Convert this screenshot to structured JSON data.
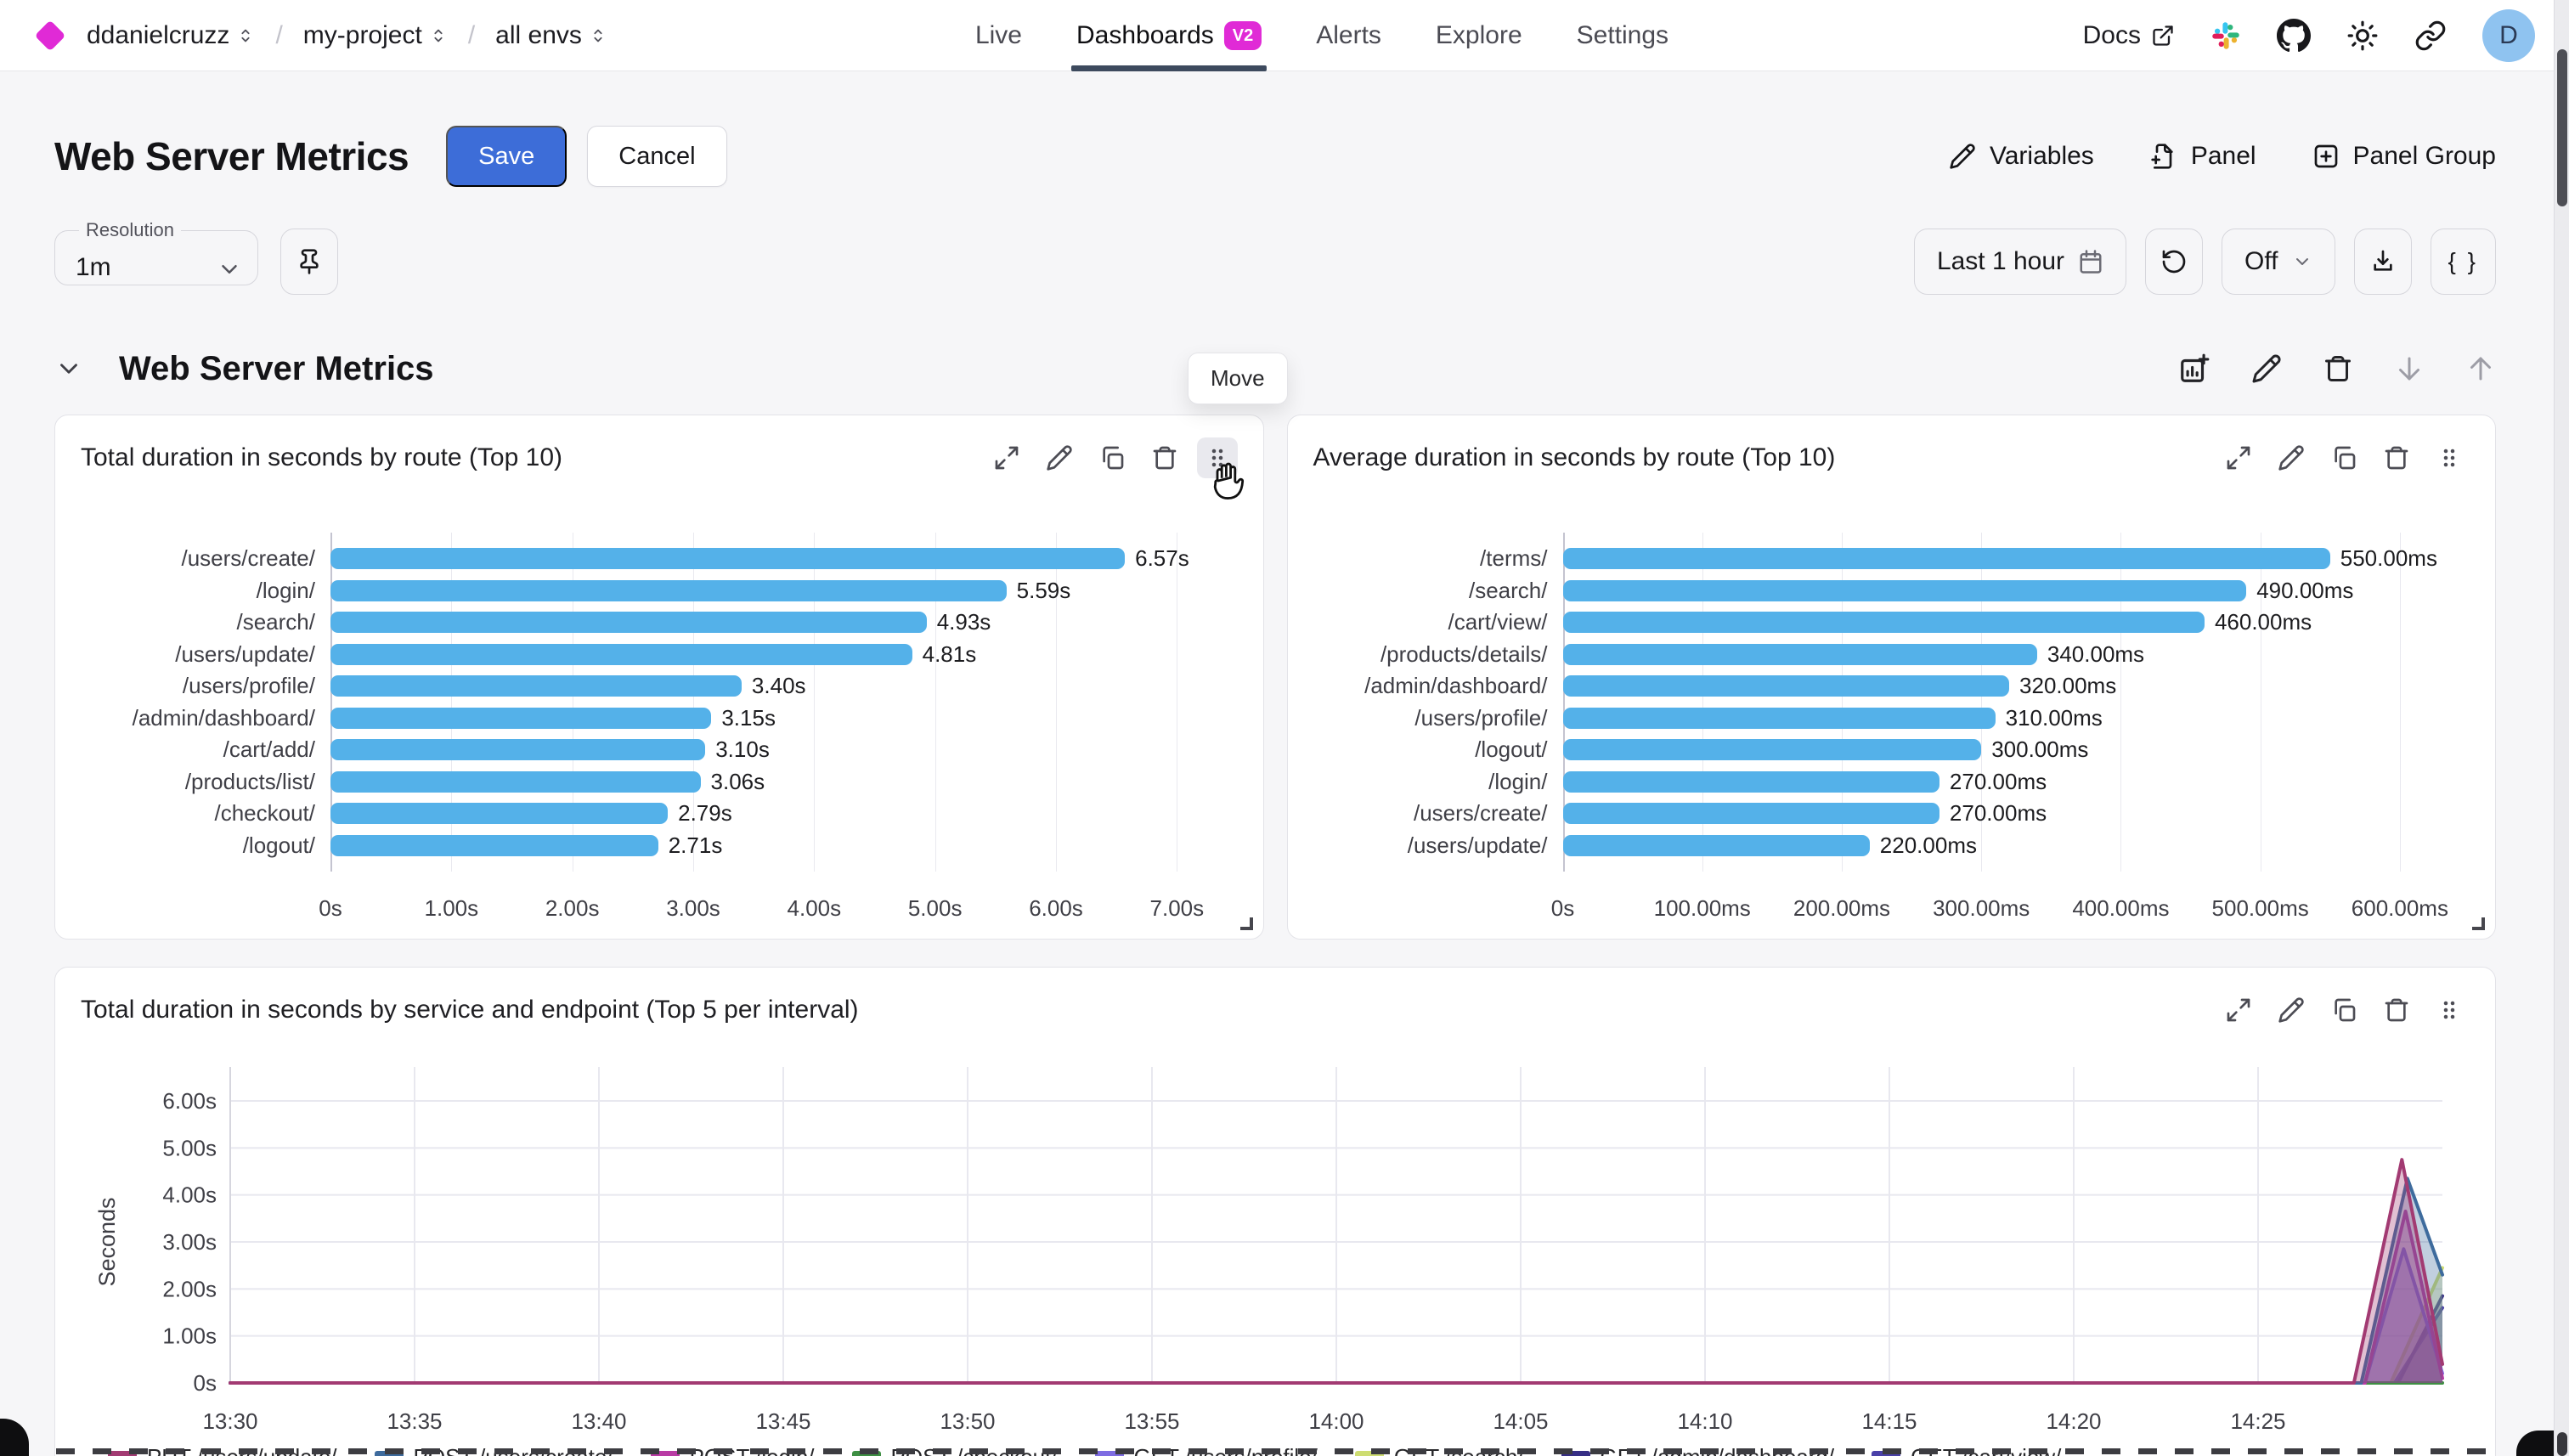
{
  "nav": {
    "org": "ddanielcruzz",
    "project": "my-project",
    "env": "all envs",
    "tabs": [
      {
        "label": "Live",
        "active": false
      },
      {
        "label": "Dashboards",
        "active": true,
        "badge": "V2"
      },
      {
        "label": "Alerts",
        "active": false
      },
      {
        "label": "Explore",
        "active": false
      },
      {
        "label": "Settings",
        "active": false
      }
    ],
    "docs": "Docs",
    "avatar_initial": "D"
  },
  "header": {
    "title": "Web Server Metrics",
    "save": "Save",
    "cancel": "Cancel",
    "variables": "Variables",
    "panel": "Panel",
    "panel_group": "Panel Group"
  },
  "toolbar": {
    "resolution_label": "Resolution",
    "resolution_value": "1m",
    "time_range": "Last 1 hour",
    "auto_refresh": "Off",
    "braces": "{ }"
  },
  "section": {
    "title": "Web Server Metrics",
    "tooltip": "Move"
  },
  "colors": {
    "accent_blue": "#3d6dd8",
    "brand_magenta": "#e02ad6",
    "bar_blue": "#54b1e9"
  },
  "chart_data": [
    {
      "type": "bar",
      "title": "Total duration in seconds by route (Top 10)",
      "orientation": "horizontal",
      "categories": [
        "/users/create/",
        "/login/",
        "/search/",
        "/users/update/",
        "/users/profile/",
        "/admin/dashboard/",
        "/cart/add/",
        "/products/list/",
        "/checkout/",
        "/logout/"
      ],
      "values": [
        6.57,
        5.59,
        4.93,
        4.81,
        3.4,
        3.15,
        3.1,
        3.06,
        2.79,
        2.71
      ],
      "value_labels": [
        "6.57s",
        "5.59s",
        "4.93s",
        "4.81s",
        "3.40s",
        "3.15s",
        "3.10s",
        "3.06s",
        "2.79s",
        "2.71s"
      ],
      "xticks": [
        {
          "v": 0,
          "label": "0s"
        },
        {
          "v": 1,
          "label": "1.00s"
        },
        {
          "v": 2,
          "label": "2.00s"
        },
        {
          "v": 3,
          "label": "3.00s"
        },
        {
          "v": 4,
          "label": "4.00s"
        },
        {
          "v": 5,
          "label": "5.00s"
        },
        {
          "v": 6,
          "label": "6.00s"
        },
        {
          "v": 7,
          "label": "7.00s"
        }
      ],
      "xmax": 7.5,
      "bar_color": "#54b1e9",
      "grid": true
    },
    {
      "type": "bar",
      "title": "Average duration in seconds by route (Top 10)",
      "orientation": "horizontal",
      "categories": [
        "/terms/",
        "/search/",
        "/cart/view/",
        "/products/details/",
        "/admin/dashboard/",
        "/users/profile/",
        "/logout/",
        "/login/",
        "/users/create/",
        "/users/update/"
      ],
      "values": [
        550,
        490,
        460,
        340,
        320,
        310,
        300,
        270,
        270,
        220
      ],
      "value_labels": [
        "550.00ms",
        "490.00ms",
        "460.00ms",
        "340.00ms",
        "320.00ms",
        "310.00ms",
        "300.00ms",
        "270.00ms",
        "270.00ms",
        "220.00ms"
      ],
      "xticks": [
        {
          "v": 0,
          "label": "0s"
        },
        {
          "v": 100,
          "label": "100.00ms"
        },
        {
          "v": 200,
          "label": "200.00ms"
        },
        {
          "v": 300,
          "label": "300.00ms"
        },
        {
          "v": 400,
          "label": "400.00ms"
        },
        {
          "v": 500,
          "label": "500.00ms"
        },
        {
          "v": 600,
          "label": "600.00ms"
        }
      ],
      "xmax": 650,
      "bar_color": "#54b1e9",
      "grid": true
    },
    {
      "type": "area",
      "title": "Total duration in seconds by service and endpoint (Top 5 per interval)",
      "ylabel": "Seconds",
      "ymax": 6,
      "yticks": [
        {
          "v": 0,
          "label": "0s"
        },
        {
          "v": 1,
          "label": "1.00s"
        },
        {
          "v": 2,
          "label": "2.00s"
        },
        {
          "v": 3,
          "label": "3.00s"
        },
        {
          "v": 4,
          "label": "4.00s"
        },
        {
          "v": 5,
          "label": "5.00s"
        },
        {
          "v": 6,
          "label": "6.00s"
        }
      ],
      "xmax": 60,
      "xticks": [
        {
          "v": 0,
          "label": "13:30"
        },
        {
          "v": 5,
          "label": "13:35"
        },
        {
          "v": 10,
          "label": "13:40"
        },
        {
          "v": 15,
          "label": "13:45"
        },
        {
          "v": 20,
          "label": "13:50"
        },
        {
          "v": 25,
          "label": "13:55"
        },
        {
          "v": 30,
          "label": "14:00"
        },
        {
          "v": 35,
          "label": "14:05"
        },
        {
          "v": 40,
          "label": "14:10"
        },
        {
          "v": 45,
          "label": "14:15"
        },
        {
          "v": 50,
          "label": "14:20"
        },
        {
          "v": 55,
          "label": "14:25"
        }
      ],
      "grid": true,
      "legend_position": "bottom",
      "series": [
        {
          "name": "PUT /users/update/",
          "color": "#a23a72",
          "points": [
            [
              0,
              0
            ],
            [
              57.6,
              0
            ],
            [
              58.9,
              4.75
            ],
            [
              60,
              0.4
            ]
          ]
        },
        {
          "name": "POST /users/create/",
          "color": "#3e6b9d",
          "points": [
            [
              0,
              0
            ],
            [
              57.8,
              0
            ],
            [
              59.05,
              4.35
            ],
            [
              60,
              2.3
            ]
          ]
        },
        {
          "name": "POST /login/",
          "color": "#b93ba4",
          "points": [
            [
              0,
              0
            ],
            [
              57.9,
              0
            ],
            [
              59,
              3.65
            ],
            [
              60,
              0.1
            ]
          ]
        },
        {
          "name": "POST /checkout/",
          "color": "#3e8f43",
          "points": [
            [
              0,
              0
            ],
            [
              60,
              0
            ]
          ]
        },
        {
          "name": "GET /users/profile/",
          "color": "#7e6ce2",
          "points": [
            [
              0,
              0
            ],
            [
              57.9,
              0
            ],
            [
              58.95,
              2.85
            ],
            [
              60,
              0.2
            ]
          ]
        },
        {
          "name": "GET /search/",
          "color": "#cedd72",
          "points": [
            [
              0,
              0
            ],
            [
              58.6,
              0
            ],
            [
              60,
              2.45
            ]
          ]
        },
        {
          "name": "GET /admin/dashboard/",
          "color": "#372f85",
          "points": [
            [
              0,
              0
            ],
            [
              58.8,
              0
            ],
            [
              60,
              1.85
            ]
          ]
        },
        {
          "name": "GET /cart/view/",
          "color": "#4a41a8",
          "points": [
            [
              0,
              0
            ],
            [
              58.7,
              0
            ],
            [
              60,
              1.6
            ]
          ]
        }
      ]
    }
  ]
}
